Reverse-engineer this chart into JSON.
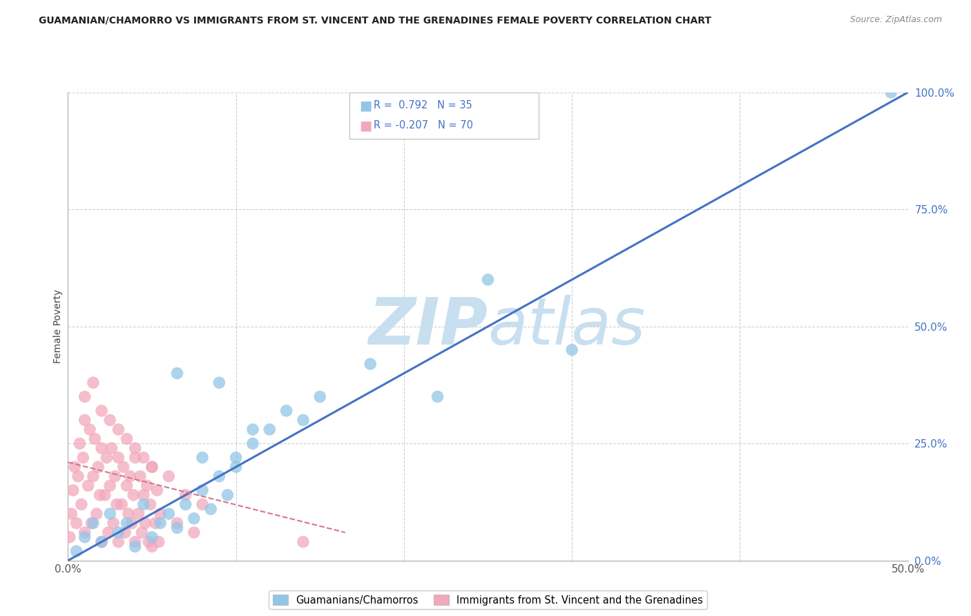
{
  "title": "GUAMANIAN/CHAMORRO VS IMMIGRANTS FROM ST. VINCENT AND THE GRENADINES FEMALE POVERTY CORRELATION CHART",
  "source": "Source: ZipAtlas.com",
  "ylabel": "Female Poverty",
  "ylabel_right_labels": [
    "0.0%",
    "25.0%",
    "50.0%",
    "75.0%",
    "100.0%"
  ],
  "ylabel_right_positions": [
    0.0,
    0.25,
    0.5,
    0.75,
    1.0
  ],
  "legend_blue_label": "R =  0.792   N = 35",
  "legend_pink_label": "R = -0.207   N = 70",
  "blue_label": "Guamanians/Chamorros",
  "pink_label": "Immigrants from St. Vincent and the Grenadines",
  "blue_color": "#92C5E8",
  "pink_color": "#F2A8BC",
  "line_blue_color": "#4472C4",
  "line_pink_color": "#D9748A",
  "text_blue_color": "#4472C4",
  "watermark_color": "#C8DFF0",
  "background_color": "#FFFFFF",
  "grid_color": "#D0D0D0",
  "xlim": [
    0.0,
    0.5
  ],
  "ylim": [
    0.0,
    1.0
  ],
  "blue_scatter_x": [
    0.005,
    0.01,
    0.015,
    0.02,
    0.025,
    0.03,
    0.035,
    0.04,
    0.045,
    0.05,
    0.055,
    0.06,
    0.065,
    0.07,
    0.075,
    0.08,
    0.085,
    0.09,
    0.095,
    0.1,
    0.11,
    0.12,
    0.13,
    0.14,
    0.15,
    0.065,
    0.08,
    0.09,
    0.1,
    0.11,
    0.18,
    0.22,
    0.3,
    0.49,
    0.25
  ],
  "blue_scatter_y": [
    0.02,
    0.05,
    0.08,
    0.04,
    0.1,
    0.06,
    0.08,
    0.03,
    0.12,
    0.05,
    0.08,
    0.1,
    0.07,
    0.12,
    0.09,
    0.15,
    0.11,
    0.18,
    0.14,
    0.22,
    0.25,
    0.28,
    0.32,
    0.3,
    0.35,
    0.4,
    0.22,
    0.38,
    0.2,
    0.28,
    0.42,
    0.35,
    0.45,
    1.0,
    0.6
  ],
  "pink_scatter_x": [
    0.001,
    0.002,
    0.003,
    0.004,
    0.005,
    0.006,
    0.007,
    0.008,
    0.009,
    0.01,
    0.01,
    0.012,
    0.013,
    0.014,
    0.015,
    0.016,
    0.017,
    0.018,
    0.019,
    0.02,
    0.02,
    0.022,
    0.023,
    0.024,
    0.025,
    0.026,
    0.027,
    0.028,
    0.029,
    0.03,
    0.03,
    0.032,
    0.033,
    0.034,
    0.035,
    0.036,
    0.037,
    0.038,
    0.039,
    0.04,
    0.04,
    0.042,
    0.043,
    0.044,
    0.045,
    0.046,
    0.047,
    0.048,
    0.049,
    0.05,
    0.05,
    0.052,
    0.053,
    0.054,
    0.055,
    0.06,
    0.065,
    0.07,
    0.075,
    0.08,
    0.01,
    0.02,
    0.03,
    0.04,
    0.05,
    0.015,
    0.025,
    0.035,
    0.045,
    0.14
  ],
  "pink_scatter_y": [
    0.05,
    0.1,
    0.15,
    0.2,
    0.08,
    0.18,
    0.25,
    0.12,
    0.22,
    0.3,
    0.06,
    0.16,
    0.28,
    0.08,
    0.18,
    0.26,
    0.1,
    0.2,
    0.14,
    0.24,
    0.04,
    0.14,
    0.22,
    0.06,
    0.16,
    0.24,
    0.08,
    0.18,
    0.12,
    0.22,
    0.04,
    0.12,
    0.2,
    0.06,
    0.16,
    0.1,
    0.18,
    0.08,
    0.14,
    0.22,
    0.04,
    0.1,
    0.18,
    0.06,
    0.14,
    0.08,
    0.16,
    0.04,
    0.12,
    0.2,
    0.03,
    0.08,
    0.15,
    0.04,
    0.1,
    0.18,
    0.08,
    0.14,
    0.06,
    0.12,
    0.35,
    0.32,
    0.28,
    0.24,
    0.2,
    0.38,
    0.3,
    0.26,
    0.22,
    0.04
  ],
  "blue_line_x": [
    0.0,
    0.5
  ],
  "blue_line_y": [
    0.0,
    1.0
  ],
  "pink_line_x": [
    0.0,
    0.165
  ],
  "pink_line_y": [
    0.21,
    0.06
  ]
}
